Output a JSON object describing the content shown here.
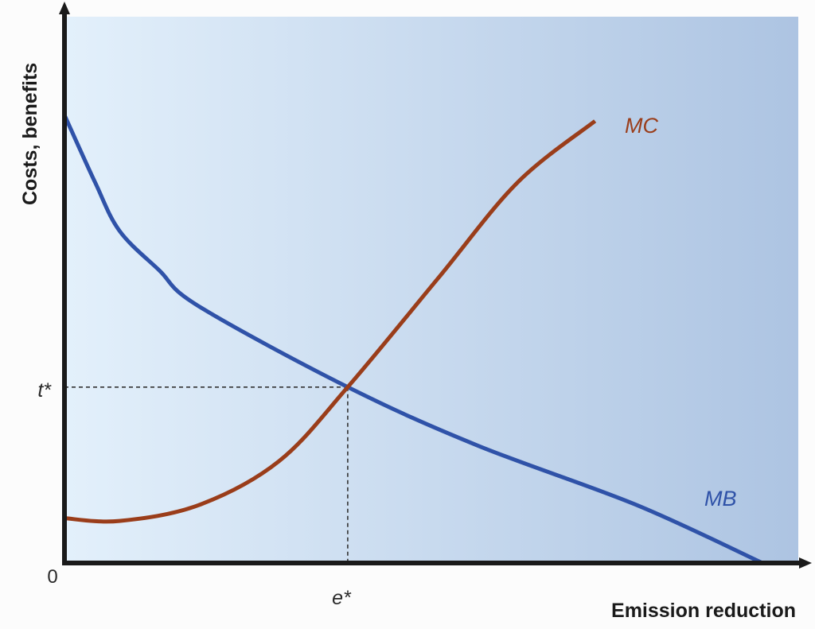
{
  "chart_data": {
    "type": "line",
    "title": "",
    "xlabel": "Emission reduction",
    "ylabel": "Costs, benefits",
    "xlim": [
      0,
      10
    ],
    "ylim": [
      0,
      10
    ],
    "grid": false,
    "origin_label": "0",
    "series": [
      {
        "name": "MB",
        "color": "#2f52a8",
        "x": [
          0,
          0.42,
          0.75,
          1.29,
          1.83,
          3.86,
          5.63,
          7.8,
          9.51
        ],
        "y": [
          8.2,
          6.96,
          6.08,
          5.36,
          4.7,
          3.22,
          2.15,
          1.06,
          0
        ]
      },
      {
        "name": "MC",
        "color": "#9a3d1a",
        "x": [
          0,
          0.75,
          1.83,
          2.92,
          3.86,
          5.09,
          6.17,
          7.23
        ],
        "y": [
          0.82,
          0.77,
          1.06,
          1.86,
          3.22,
          5.21,
          6.96,
          8.09
        ]
      }
    ],
    "equilibrium": {
      "x": 3.86,
      "y": 3.22,
      "x_label": "e*",
      "y_label": "t*"
    },
    "background_gradient": [
      "#e3f0fb",
      "#adc4e2"
    ]
  }
}
